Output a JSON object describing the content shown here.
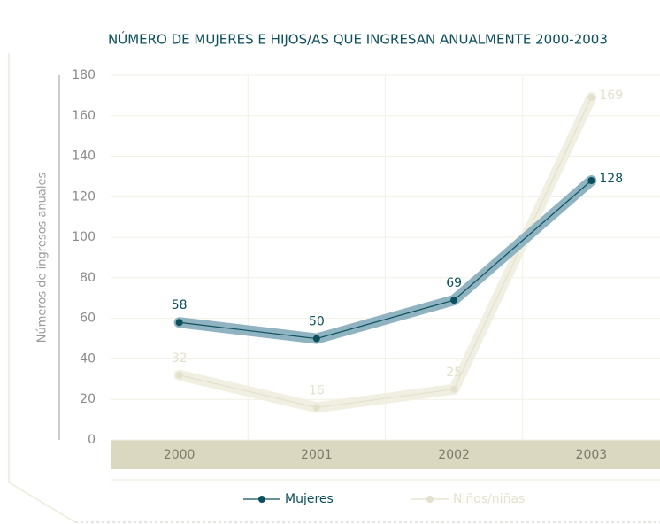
{
  "chart_data": {
    "type": "line",
    "title": "NÚMERO DE MUJERES E HIJOS/AS QUE INGRESAN ANUALMENTE 2000-2003",
    "y_label": "Números de ingresos anuales",
    "categories": [
      "2000",
      "2001",
      "2002",
      "2003"
    ],
    "series": [
      {
        "name": "Mujeres",
        "color": "#0b4f5c",
        "halo": "#8fb3c1",
        "values": [
          58,
          50,
          69,
          128
        ]
      },
      {
        "name": "Niños/niñas",
        "color": "#e3e1cc",
        "halo": "#f1efe2",
        "values": [
          32,
          16,
          25,
          169
        ]
      }
    ],
    "ylim": [
      0,
      180
    ],
    "yticks": [
      0,
      20,
      40,
      60,
      80,
      100,
      120,
      140,
      160,
      180
    ],
    "grid": true
  }
}
